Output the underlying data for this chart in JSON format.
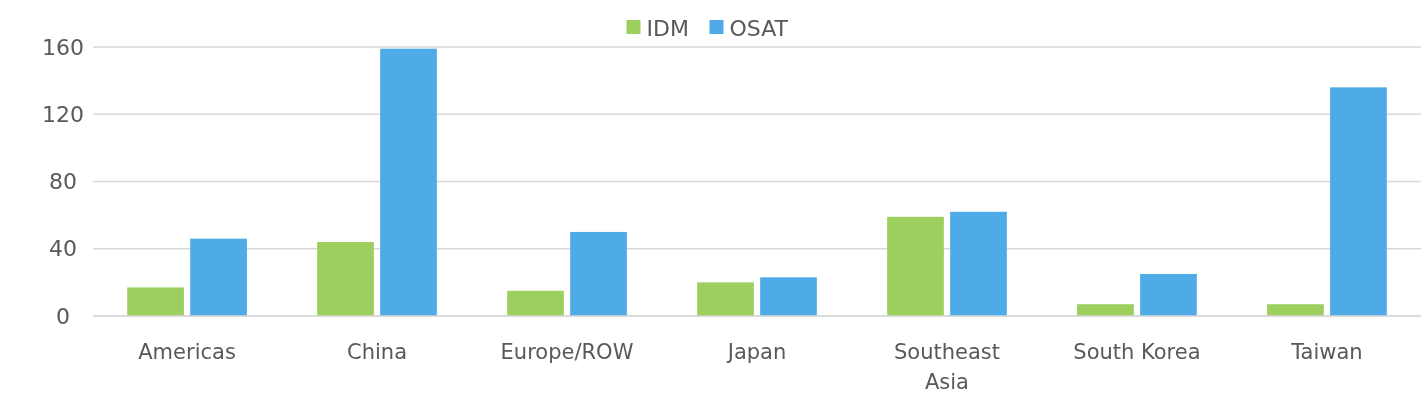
{
  "chart_data": {
    "type": "bar",
    "categories": [
      "Americas",
      "China",
      "Europe/ROW",
      "Japan",
      "Southeast Asia",
      "South Korea",
      "Taiwan"
    ],
    "series": [
      {
        "name": "IDM",
        "color": "#9dcf5f",
        "values": [
          17,
          44,
          15,
          20,
          59,
          7,
          7
        ]
      },
      {
        "name": "OSAT",
        "color": "#4eabe8",
        "values": [
          46,
          159,
          50,
          23,
          62,
          25,
          136
        ]
      }
    ],
    "ylim": [
      0,
      160
    ],
    "yticks": [
      0,
      40,
      80,
      120,
      160
    ],
    "grid": "y",
    "legend": "top"
  }
}
